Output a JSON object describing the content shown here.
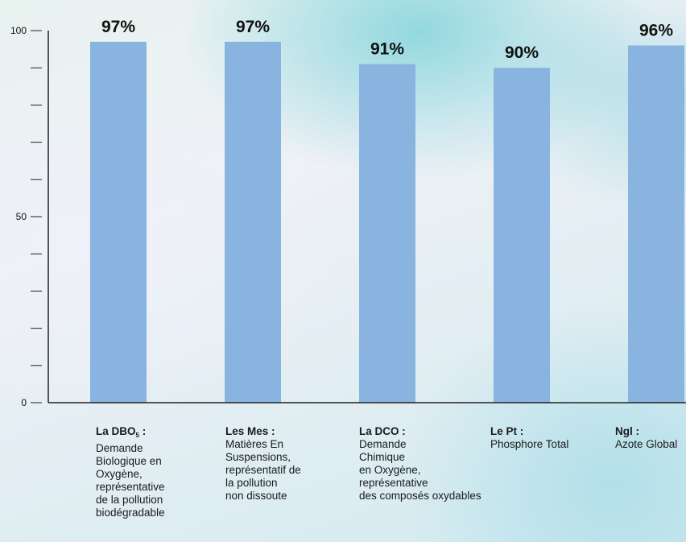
{
  "colors": {
    "bar": "#8ab4e0",
    "axis": "#222222",
    "text": "#111111"
  },
  "chart_data": {
    "type": "bar",
    "ylim": [
      0,
      100
    ],
    "yticks": [
      0,
      10,
      20,
      30,
      40,
      50,
      60,
      70,
      80,
      90,
      100
    ],
    "ytick_labels": [
      "0",
      "",
      "",
      "",
      "",
      "50",
      "",
      "",
      "",
      "",
      "100"
    ],
    "grid": false,
    "categories": [
      "La DBO5",
      "Les Mes",
      "La DCO",
      "Le Pt",
      "Ngl"
    ],
    "values": [
      97,
      97,
      91,
      90,
      96
    ],
    "value_labels": [
      "97%",
      "97%",
      "91%",
      "90%",
      "96%"
    ]
  },
  "category_labels": [
    {
      "title": "La DBO",
      "subscript": "5",
      "suffix": " :",
      "lines": [
        "Demande",
        "Biologique en",
        "Oxygène,",
        "représentative",
        "de la pollution",
        "biodégradable"
      ]
    },
    {
      "title": "Les Mes",
      "subscript": "",
      "suffix": " :",
      "lines": [
        "Matières En",
        "Suspensions,",
        "représentatif de",
        "la pollution",
        "non dissoute"
      ]
    },
    {
      "title": "La DCO",
      "subscript": "",
      "suffix": " :",
      "lines": [
        "Demande",
        "Chimique",
        "en Oxygène,",
        "représentative",
        "des composés oxydables"
      ]
    },
    {
      "title": "Le Pt",
      "subscript": "",
      "suffix": " :",
      "lines": [
        "Phosphore Total"
      ]
    },
    {
      "title": "Ngl",
      "subscript": "",
      "suffix": " :",
      "lines": [
        "Azote Global"
      ]
    }
  ]
}
